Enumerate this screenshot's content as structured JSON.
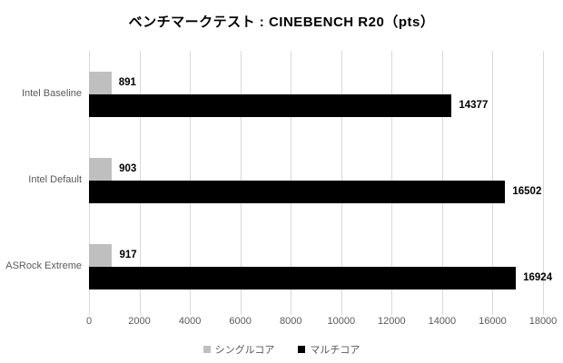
{
  "chart_data": {
    "type": "bar",
    "orientation": "horizontal",
    "title": "ベンチマークテスト : CINEBENCH R20（pts）",
    "categories": [
      "Intel Baseline",
      "Intel Default",
      "ASRock Extreme"
    ],
    "series": [
      {
        "name": "シングルコア",
        "color": "#bfbfbf",
        "values": [
          891,
          903,
          917
        ]
      },
      {
        "name": "マルチコア",
        "color": "#000000",
        "values": [
          14377,
          16502,
          16924
        ]
      }
    ],
    "xlim": [
      0,
      18000
    ],
    "x_ticks": [
      0,
      2000,
      4000,
      6000,
      8000,
      10000,
      12000,
      14000,
      16000,
      18000
    ],
    "grid": true,
    "gridline_color": "#d9d9d9",
    "value_labels": true,
    "value_label_color": "#000000",
    "axis_text_color": "#595959",
    "legend_position": "bottom",
    "background_color": "#ffffff"
  }
}
